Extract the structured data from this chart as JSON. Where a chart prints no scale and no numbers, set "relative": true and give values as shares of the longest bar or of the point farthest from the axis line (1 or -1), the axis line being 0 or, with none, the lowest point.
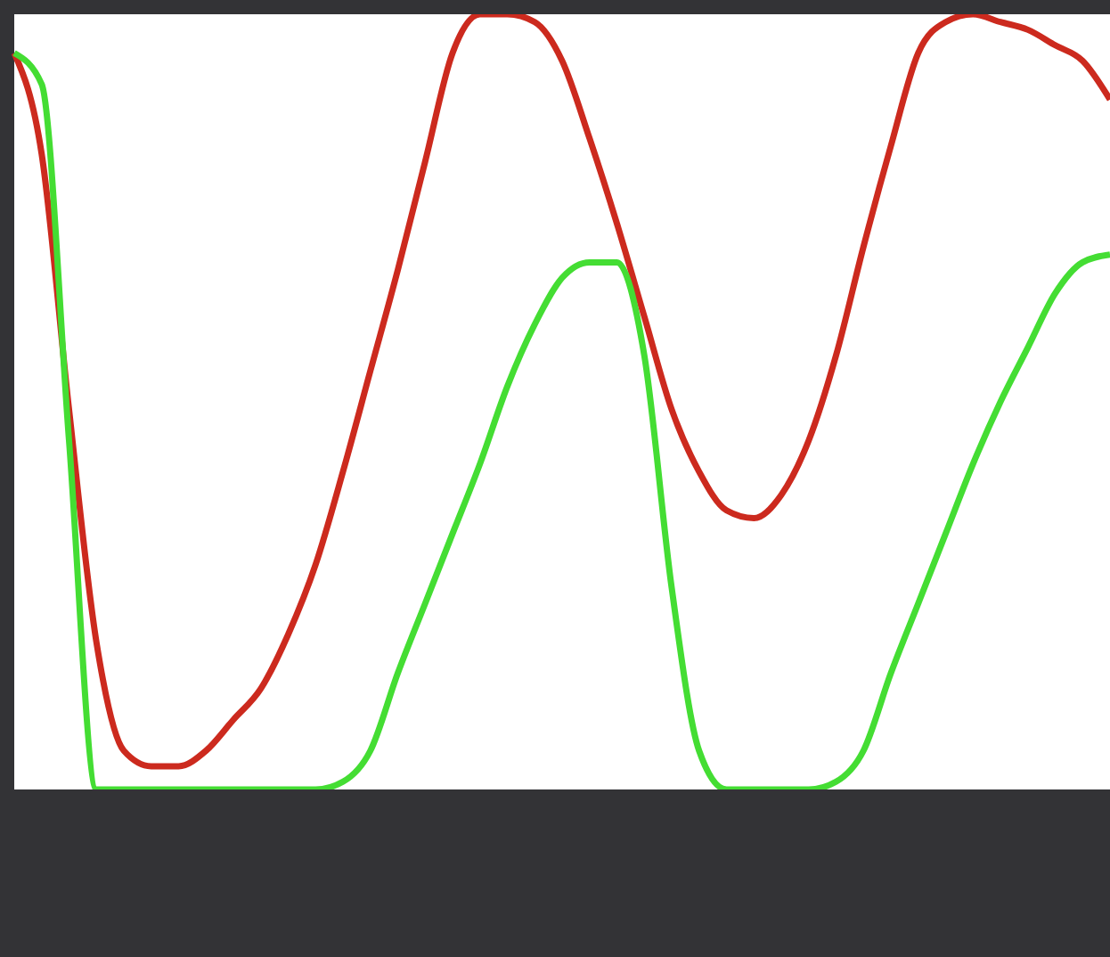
{
  "chart_data": {
    "type": "line",
    "relative": true,
    "categories": [
      null,
      null,
      null,
      null,
      null,
      null,
      null,
      null,
      null,
      null,
      null,
      null,
      null,
      null,
      null,
      null,
      null,
      null,
      null,
      null,
      null,
      null,
      null,
      null,
      null,
      null,
      null,
      null,
      null,
      null,
      null,
      null,
      null,
      null,
      null,
      null,
      null,
      null,
      null,
      null,
      null
    ],
    "series": [
      {
        "color": "#cc2a1e",
        "values": [
          0.95,
          0.82,
          0.49,
          0.19,
          0.05,
          0.03,
          0.03,
          0.05,
          0.09,
          0.13,
          0.2,
          0.29,
          0.41,
          0.54,
          0.67,
          0.81,
          0.95,
          1,
          1,
          0.99,
          0.94,
          0.84,
          0.73,
          0.61,
          0.49,
          0.41,
          0.36,
          0.35,
          0.38,
          0.45,
          0.56,
          0.7,
          0.83,
          0.95,
          0.99,
          1,
          0.99,
          0.98,
          0.96,
          0.94,
          0.89
        ]
      },
      {
        "color": "#44dd33",
        "values": [
          0.95,
          0.91,
          0.45,
          0,
          0,
          0,
          0,
          0,
          0,
          0,
          0,
          0,
          0.01,
          0.05,
          0.15,
          0.24,
          0.33,
          0.42,
          0.52,
          0.6,
          0.66,
          0.68,
          0.68,
          0.56,
          0.26,
          0.05,
          0,
          0,
          0,
          0,
          0.01,
          0.05,
          0.15,
          0.24,
          0.33,
          0.42,
          0.5,
          0.57,
          0.64,
          0.68,
          0.69
        ]
      }
    ]
  }
}
